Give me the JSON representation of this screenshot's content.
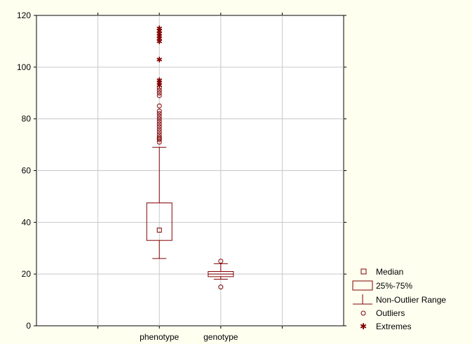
{
  "chart_data": {
    "type": "box",
    "categories": [
      "phenotype",
      "genotype"
    ],
    "ylim": [
      0,
      120
    ],
    "yticks": [
      0,
      20,
      40,
      60,
      80,
      100,
      120
    ],
    "grid": true,
    "legend_placement": "bottom-right",
    "color": "#800000",
    "boxes": [
      {
        "category": "phenotype",
        "median": 37,
        "q1": 33,
        "q3": 47.5,
        "whisker_low": 26,
        "whisker_high": 69,
        "outliers": [
          71,
          72,
          72.5,
          73,
          74,
          75,
          76,
          77,
          78,
          79,
          80,
          81,
          82,
          83,
          85,
          89,
          90,
          91,
          92
        ],
        "extremes": [
          93,
          94,
          95,
          103,
          110,
          111,
          112,
          113,
          114,
          115
        ]
      },
      {
        "category": "genotype",
        "median": 20,
        "q1": 19,
        "q3": 21,
        "whisker_low": 18,
        "whisker_high": 24,
        "outliers": [
          15,
          25
        ],
        "extremes": []
      }
    ],
    "legend": [
      "Median",
      "25%-75%",
      "Non-Outlier Range",
      "Outliers",
      "Extremes"
    ]
  }
}
